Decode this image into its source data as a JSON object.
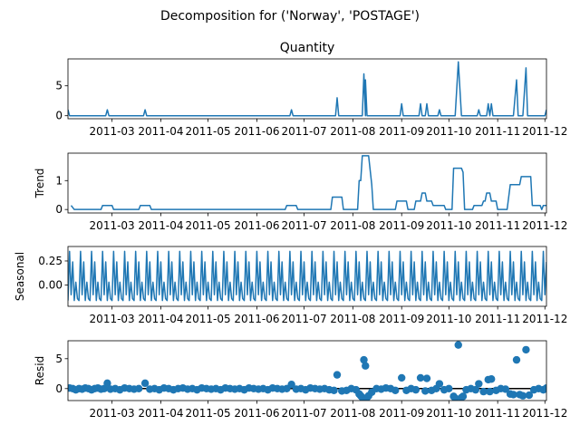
{
  "suptitle": "Decomposition for ('Norway', 'POSTAGE')",
  "colors": {
    "series": "#1f77b4",
    "axis": "#000000",
    "zero_line": "#000000"
  },
  "x_ticks": [
    "2011-03",
    "2011-04",
    "2011-05",
    "2011-06",
    "2011-07",
    "2011-08",
    "2011-09",
    "2011-10",
    "2011-11",
    "2011-12"
  ],
  "chart_data": [
    {
      "type": "line",
      "title": "Quantity",
      "ylabel": "",
      "x_range": [
        "2011-02-01",
        "2011-12-02"
      ],
      "ylim": [
        -0.5,
        9.5
      ],
      "yticks": [
        0,
        5
      ],
      "series": [
        {
          "values": [
            [
              "2011-02-01",
              1.0
            ],
            [
              "2011-02-02",
              0
            ],
            [
              "2011-02-25",
              0
            ],
            [
              "2011-02-26",
              1
            ],
            [
              "2011-02-27",
              0
            ],
            [
              "2011-03-21",
              0
            ],
            [
              "2011-03-22",
              1
            ],
            [
              "2011-03-23",
              0
            ],
            [
              "2011-06-22",
              0
            ],
            [
              "2011-06-23",
              1
            ],
            [
              "2011-06-24",
              0
            ],
            [
              "2011-07-21",
              0
            ],
            [
              "2011-07-22",
              3
            ],
            [
              "2011-07-23",
              0
            ],
            [
              "2011-08-07",
              0
            ],
            [
              "2011-08-08",
              7
            ],
            [
              "2011-08-09",
              0
            ],
            [
              "2011-08-09",
              6
            ],
            [
              "2011-08-10",
              0
            ],
            [
              "2011-08-31",
              0
            ],
            [
              "2011-09-01",
              2
            ],
            [
              "2011-09-02",
              0
            ],
            [
              "2011-09-12",
              0
            ],
            [
              "2011-09-13",
              2
            ],
            [
              "2011-09-14",
              0
            ],
            [
              "2011-09-16",
              0
            ],
            [
              "2011-09-17",
              2
            ],
            [
              "2011-09-18",
              0
            ],
            [
              "2011-09-24",
              0
            ],
            [
              "2011-09-25",
              1
            ],
            [
              "2011-09-26",
              0
            ],
            [
              "2011-10-05",
              0
            ],
            [
              "2011-10-07",
              9
            ],
            [
              "2011-10-09",
              0
            ],
            [
              "2011-10-19",
              0
            ],
            [
              "2011-10-20",
              1
            ],
            [
              "2011-10-21",
              0
            ],
            [
              "2011-10-25",
              0
            ],
            [
              "2011-10-26",
              2
            ],
            [
              "2011-10-27",
              0
            ],
            [
              "2011-10-28",
              2
            ],
            [
              "2011-10-29",
              0
            ],
            [
              "2011-11-11",
              0
            ],
            [
              "2011-11-13",
              6
            ],
            [
              "2011-11-14",
              0
            ],
            [
              "2011-11-17",
              0
            ],
            [
              "2011-11-19",
              8
            ],
            [
              "2011-11-20",
              0
            ],
            [
              "2011-12-01",
              0
            ],
            [
              "2011-12-02",
              1
            ]
          ]
        }
      ]
    },
    {
      "type": "line",
      "title": "",
      "ylabel": "Trend",
      "x_range": [
        "2011-02-01",
        "2011-12-02"
      ],
      "ylim": [
        -0.12,
        1.95
      ],
      "yticks": [
        0,
        1
      ],
      "series": [
        {
          "values": [
            [
              "2011-02-03",
              0.14
            ],
            [
              "2011-02-05",
              0
            ],
            [
              "2011-02-22",
              0
            ],
            [
              "2011-02-23",
              0.14
            ],
            [
              "2011-03-01",
              0.14
            ],
            [
              "2011-03-02",
              0
            ],
            [
              "2011-03-18",
              0
            ],
            [
              "2011-03-19",
              0.14
            ],
            [
              "2011-03-25",
              0.14
            ],
            [
              "2011-03-26",
              0
            ],
            [
              "2011-06-19",
              0
            ],
            [
              "2011-06-20",
              0.14
            ],
            [
              "2011-06-26",
              0.14
            ],
            [
              "2011-06-27",
              0
            ],
            [
              "2011-07-18",
              0
            ],
            [
              "2011-07-19",
              0.43
            ],
            [
              "2011-07-25",
              0.43
            ],
            [
              "2011-07-26",
              0
            ],
            [
              "2011-08-04",
              0
            ],
            [
              "2011-08-05",
              1.0
            ],
            [
              "2011-08-06",
              1.0
            ],
            [
              "2011-08-07",
              1.86
            ],
            [
              "2011-08-11",
              1.86
            ],
            [
              "2011-08-13",
              0.86
            ],
            [
              "2011-08-14",
              0
            ],
            [
              "2011-08-28",
              0
            ],
            [
              "2011-08-29",
              0.29
            ],
            [
              "2011-09-04",
              0.29
            ],
            [
              "2011-09-05",
              0
            ],
            [
              "2011-09-09",
              0
            ],
            [
              "2011-09-10",
              0.29
            ],
            [
              "2011-09-13",
              0.29
            ],
            [
              "2011-09-14",
              0.57
            ],
            [
              "2011-09-16",
              0.57
            ],
            [
              "2011-09-17",
              0.29
            ],
            [
              "2011-09-20",
              0.29
            ],
            [
              "2011-09-21",
              0.14
            ],
            [
              "2011-09-28",
              0.14
            ],
            [
              "2011-09-29",
              0
            ],
            [
              "2011-10-03",
              0
            ],
            [
              "2011-10-04",
              1.43
            ],
            [
              "2011-10-09",
              1.43
            ],
            [
              "2011-10-10",
              1.29
            ],
            [
              "2011-10-11",
              0
            ],
            [
              "2011-10-16",
              0
            ],
            [
              "2011-10-17",
              0.14
            ],
            [
              "2011-10-22",
              0.14
            ],
            [
              "2011-10-23",
              0.29
            ],
            [
              "2011-10-24",
              0.29
            ],
            [
              "2011-10-25",
              0.57
            ],
            [
              "2011-10-27",
              0.57
            ],
            [
              "2011-10-28",
              0.29
            ],
            [
              "2011-10-31",
              0.29
            ],
            [
              "2011-11-01",
              0
            ],
            [
              "2011-11-07",
              0
            ],
            [
              "2011-11-09",
              0.86
            ],
            [
              "2011-11-15",
              0.86
            ],
            [
              "2011-11-16",
              1.14
            ],
            [
              "2011-11-22",
              1.14
            ],
            [
              "2011-11-23",
              0.14
            ],
            [
              "2011-11-28",
              0.14
            ],
            [
              "2011-11-29",
              0
            ],
            [
              "2011-11-30",
              0.14
            ],
            [
              "2011-12-02",
              0.14
            ]
          ]
        }
      ]
    },
    {
      "type": "line",
      "title": "",
      "ylabel": "Seasonal",
      "x_range": [
        "2011-02-01",
        "2011-12-02"
      ],
      "ylim": [
        -0.22,
        0.4
      ],
      "yticks": [
        0.25,
        0.0
      ],
      "period_days": 7,
      "weekly_pattern": [
        -0.16,
        0.35,
        -0.1,
        0.24,
        -0.16,
        0.03,
        -0.14
      ],
      "series": [
        {
          "values": []
        }
      ]
    },
    {
      "type": "scatter",
      "title": "",
      "ylabel": "Resid",
      "x_range": [
        "2011-02-01",
        "2011-12-02"
      ],
      "ylim": [
        -2.0,
        8.0
      ],
      "yticks": [
        0,
        5
      ],
      "zero_line": true,
      "series": [
        {
          "values": [
            [
              "2011-02-02",
              0.1
            ],
            [
              "2011-02-04",
              0.0
            ],
            [
              "2011-02-06",
              -0.2
            ],
            [
              "2011-02-08",
              0.0
            ],
            [
              "2011-02-10",
              -0.1
            ],
            [
              "2011-02-12",
              0.1
            ],
            [
              "2011-02-14",
              0.0
            ],
            [
              "2011-02-16",
              -0.2
            ],
            [
              "2011-02-18",
              0.0
            ],
            [
              "2011-02-20",
              0.1
            ],
            [
              "2011-02-22",
              -0.1
            ],
            [
              "2011-02-24",
              0.0
            ],
            [
              "2011-02-26",
              0.9
            ],
            [
              "2011-02-28",
              -0.1
            ],
            [
              "2011-03-03",
              0.0
            ],
            [
              "2011-03-06",
              -0.2
            ],
            [
              "2011-03-09",
              0.1
            ],
            [
              "2011-03-12",
              0.0
            ],
            [
              "2011-03-15",
              -0.1
            ],
            [
              "2011-03-18",
              0.0
            ],
            [
              "2011-03-22",
              0.9
            ],
            [
              "2011-03-25",
              -0.1
            ],
            [
              "2011-03-28",
              0.0
            ],
            [
              "2011-03-31",
              -0.2
            ],
            [
              "2011-04-03",
              0.1
            ],
            [
              "2011-04-06",
              0.0
            ],
            [
              "2011-04-09",
              -0.2
            ],
            [
              "2011-04-12",
              0.0
            ],
            [
              "2011-04-15",
              0.1
            ],
            [
              "2011-04-18",
              -0.1
            ],
            [
              "2011-04-21",
              0.0
            ],
            [
              "2011-04-24",
              -0.2
            ],
            [
              "2011-04-27",
              0.1
            ],
            [
              "2011-04-30",
              0.0
            ],
            [
              "2011-05-03",
              -0.1
            ],
            [
              "2011-05-06",
              0.0
            ],
            [
              "2011-05-09",
              -0.2
            ],
            [
              "2011-05-12",
              0.1
            ],
            [
              "2011-05-15",
              0.0
            ],
            [
              "2011-05-18",
              -0.1
            ],
            [
              "2011-05-21",
              0.0
            ],
            [
              "2011-05-24",
              -0.2
            ],
            [
              "2011-05-27",
              0.1
            ],
            [
              "2011-05-30",
              0.0
            ],
            [
              "2011-06-02",
              -0.1
            ],
            [
              "2011-06-05",
              0.0
            ],
            [
              "2011-06-08",
              -0.2
            ],
            [
              "2011-06-11",
              0.1
            ],
            [
              "2011-06-14",
              0.0
            ],
            [
              "2011-06-17",
              -0.1
            ],
            [
              "2011-06-20",
              0.0
            ],
            [
              "2011-06-23",
              0.7
            ],
            [
              "2011-06-26",
              -0.1
            ],
            [
              "2011-06-29",
              0.0
            ],
            [
              "2011-07-02",
              -0.2
            ],
            [
              "2011-07-05",
              0.1
            ],
            [
              "2011-07-08",
              0.0
            ],
            [
              "2011-07-11",
              -0.1
            ],
            [
              "2011-07-14",
              0.0
            ],
            [
              "2011-07-17",
              -0.2
            ],
            [
              "2011-07-20",
              -0.3
            ],
            [
              "2011-07-22",
              2.3
            ],
            [
              "2011-07-25",
              -0.4
            ],
            [
              "2011-07-28",
              -0.3
            ],
            [
              "2011-07-31",
              0.0
            ],
            [
              "2011-08-03",
              -0.2
            ],
            [
              "2011-08-05",
              -0.9
            ],
            [
              "2011-08-06",
              -1.2
            ],
            [
              "2011-08-07",
              -1.5
            ],
            [
              "2011-08-08",
              4.8
            ],
            [
              "2011-08-09",
              3.8
            ],
            [
              "2011-08-10",
              -1.5
            ],
            [
              "2011-08-11",
              -1.2
            ],
            [
              "2011-08-13",
              -0.6
            ],
            [
              "2011-08-16",
              0.0
            ],
            [
              "2011-08-19",
              -0.1
            ],
            [
              "2011-08-22",
              0.1
            ],
            [
              "2011-08-25",
              0.0
            ],
            [
              "2011-08-28",
              -0.3
            ],
            [
              "2011-09-01",
              1.8
            ],
            [
              "2011-09-04",
              -0.3
            ],
            [
              "2011-09-07",
              0.0
            ],
            [
              "2011-09-10",
              -0.2
            ],
            [
              "2011-09-13",
              1.8
            ],
            [
              "2011-09-16",
              -0.4
            ],
            [
              "2011-09-17",
              1.7
            ],
            [
              "2011-09-20",
              -0.3
            ],
            [
              "2011-09-23",
              0.0
            ],
            [
              "2011-09-25",
              0.8
            ],
            [
              "2011-09-28",
              -0.2
            ],
            [
              "2011-10-01",
              0.0
            ],
            [
              "2011-10-04",
              -1.3
            ],
            [
              "2011-10-05",
              -1.6
            ],
            [
              "2011-10-07",
              7.3
            ],
            [
              "2011-10-09",
              -1.5
            ],
            [
              "2011-10-10",
              -1.3
            ],
            [
              "2011-10-12",
              -0.2
            ],
            [
              "2011-10-15",
              0.0
            ],
            [
              "2011-10-18",
              -0.2
            ],
            [
              "2011-10-20",
              0.8
            ],
            [
              "2011-10-23",
              -0.5
            ],
            [
              "2011-10-26",
              1.5
            ],
            [
              "2011-10-27",
              -0.5
            ],
            [
              "2011-10-28",
              1.6
            ],
            [
              "2011-10-31",
              -0.3
            ],
            [
              "2011-11-03",
              0.0
            ],
            [
              "2011-11-06",
              -0.1
            ],
            [
              "2011-11-09",
              -0.9
            ],
            [
              "2011-11-11",
              -1.0
            ],
            [
              "2011-11-13",
              4.8
            ],
            [
              "2011-11-15",
              -1.0
            ],
            [
              "2011-11-17",
              -1.2
            ],
            [
              "2011-11-19",
              6.5
            ],
            [
              "2011-11-21",
              -1.1
            ],
            [
              "2011-11-24",
              -0.2
            ],
            [
              "2011-11-27",
              0.0
            ],
            [
              "2011-11-30",
              -0.2
            ],
            [
              "2011-12-02",
              0.1
            ]
          ]
        }
      ]
    }
  ]
}
